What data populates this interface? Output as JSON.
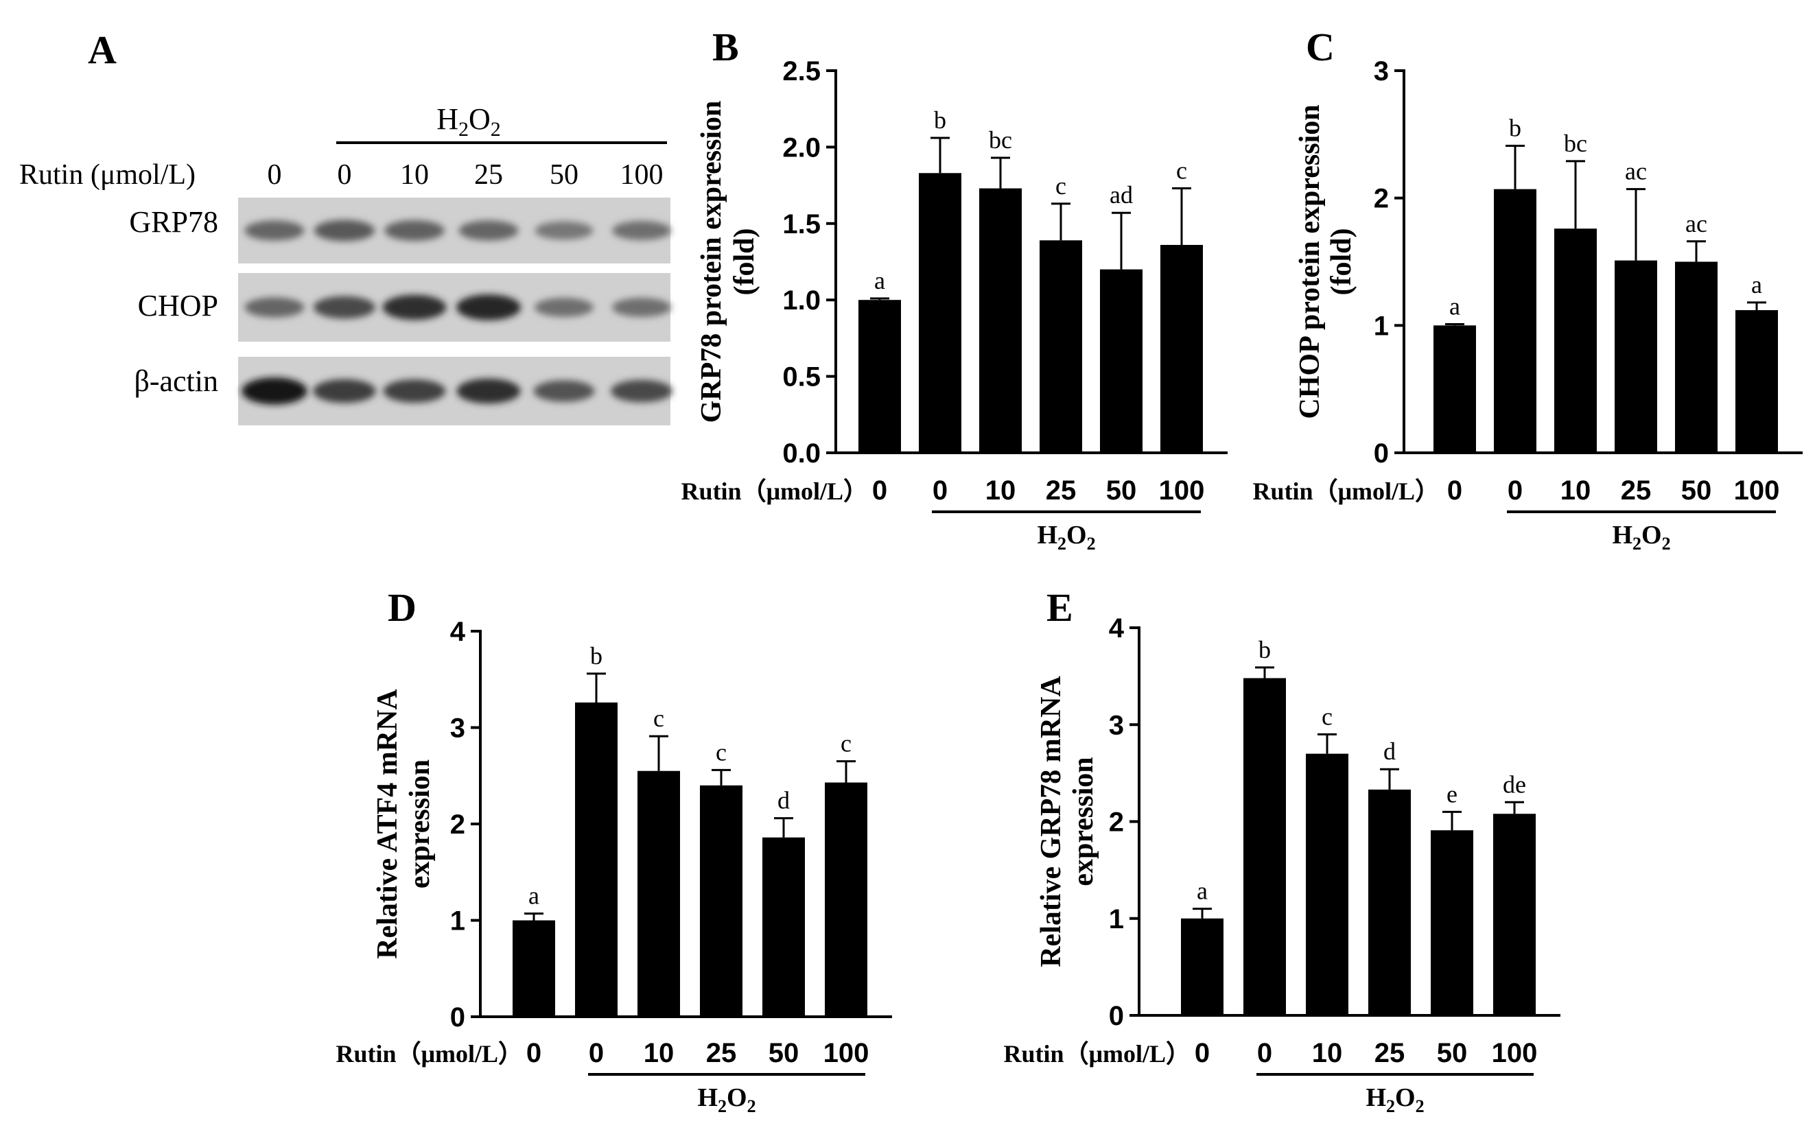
{
  "blot": {
    "panel_label": "A",
    "rutin_label": "Rutin (μmol/L)",
    "h2o2": {
      "prefix": "H",
      "sub1": "2",
      "mid": "O",
      "sub2": "2"
    },
    "lanes": [
      "0",
      "0",
      "10",
      "25",
      "50",
      "100"
    ],
    "rows": [
      {
        "name": "GRP78",
        "bands": [
          0.55,
          0.62,
          0.58,
          0.55,
          0.45,
          0.5
        ]
      },
      {
        "name": "CHOP",
        "bands": [
          0.55,
          0.7,
          0.85,
          0.9,
          0.5,
          0.5
        ]
      },
      {
        "name": "β-actin",
        "bands": [
          0.98,
          0.78,
          0.75,
          0.85,
          0.65,
          0.7
        ]
      }
    ]
  },
  "x_axis": {
    "rutin_label": "Rutin（μmol/L）",
    "h2o2": {
      "prefix": "H",
      "sub1": "2",
      "mid": "O",
      "sub2": "2"
    }
  },
  "chart_data": [
    {
      "panel": "B",
      "type": "bar",
      "ylabel": [
        "GRP78 protein expression",
        "(fold)"
      ],
      "categories": [
        "0",
        "0",
        "10",
        "25",
        "50",
        "100"
      ],
      "values": [
        1.0,
        1.83,
        1.73,
        1.39,
        1.2,
        1.36
      ],
      "errors": [
        0.01,
        0.23,
        0.2,
        0.24,
        0.37,
        0.37
      ],
      "significance": [
        "a",
        "b",
        "bc",
        "c",
        "ad",
        "c"
      ],
      "ylim": [
        0,
        2.5
      ],
      "yticks": [
        "0.0",
        "0.5",
        "1.0",
        "1.5",
        "2.0",
        "2.5"
      ]
    },
    {
      "panel": "C",
      "type": "bar",
      "ylabel": [
        "CHOP protein expression",
        "(fold)"
      ],
      "categories": [
        "0",
        "0",
        "10",
        "25",
        "50",
        "100"
      ],
      "values": [
        1.0,
        2.07,
        1.76,
        1.51,
        1.5,
        1.12
      ],
      "errors": [
        0.01,
        0.34,
        0.53,
        0.56,
        0.16,
        0.06
      ],
      "significance": [
        "a",
        "b",
        "bc",
        "ac",
        "ac",
        "a"
      ],
      "ylim": [
        0,
        3
      ],
      "yticks": [
        "0",
        "1",
        "2",
        "3"
      ]
    },
    {
      "panel": "D",
      "type": "bar",
      "ylabel": [
        "Relative ATF4 mRNA",
        "expression"
      ],
      "categories": [
        "0",
        "0",
        "10",
        "25",
        "50",
        "100"
      ],
      "values": [
        1.0,
        3.26,
        2.55,
        2.4,
        1.86,
        2.43
      ],
      "errors": [
        0.07,
        0.3,
        0.36,
        0.16,
        0.2,
        0.22
      ],
      "significance": [
        "a",
        "b",
        "c",
        "c",
        "d",
        "c"
      ],
      "ylim": [
        0,
        4
      ],
      "yticks": [
        "0",
        "1",
        "2",
        "3",
        "4"
      ]
    },
    {
      "panel": "E",
      "type": "bar",
      "ylabel": [
        "Relative GRP78 mRNA",
        "expression"
      ],
      "categories": [
        "0",
        "0",
        "10",
        "25",
        "50",
        "100"
      ],
      "values": [
        1.0,
        3.48,
        2.7,
        2.33,
        1.91,
        2.08
      ],
      "errors": [
        0.1,
        0.11,
        0.2,
        0.21,
        0.19,
        0.12
      ],
      "significance": [
        "a",
        "b",
        "c",
        "d",
        "e",
        "de"
      ],
      "ylim": [
        0,
        4
      ],
      "yticks": [
        "0",
        "1",
        "2",
        "3",
        "4"
      ]
    }
  ]
}
